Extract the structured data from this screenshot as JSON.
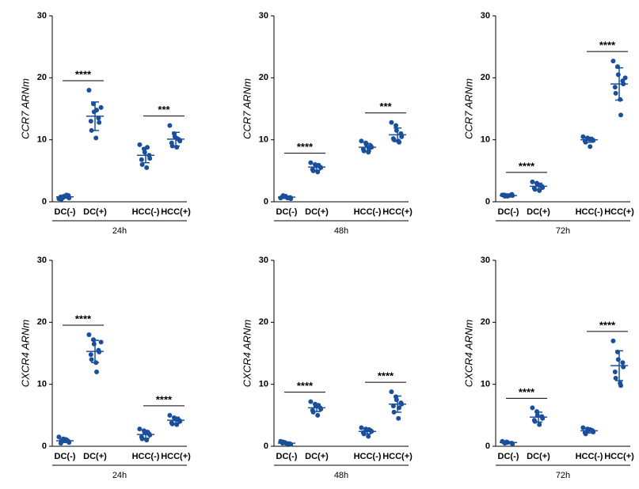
{
  "chart_data": [
    {
      "type": "scatter",
      "ylabel": "CCR7 ARNm",
      "xlabel": "24h",
      "categories": [
        "DC(-)",
        "DC(+)",
        "HCC(-)",
        "HCC(+)"
      ],
      "color": "#1a4f9c",
      "values": [
        [
          0.5,
          0.7,
          0.9,
          1.0,
          0.6,
          0.8,
          0.4,
          0.9,
          1.1
        ],
        [
          18,
          15.8,
          14.5,
          13.5,
          12.8,
          13,
          11.5,
          10.3,
          14.8,
          15.2
        ],
        [
          9.2,
          8.5,
          8.0,
          7.5,
          7.0,
          6.8,
          6.0,
          5.5,
          8.8
        ],
        [
          12.3,
          11,
          10.5,
          10,
          9.8,
          9.5,
          9,
          8.8,
          10.2
        ]
      ],
      "means": [
        0.8,
        13.8,
        7.5,
        10.1
      ],
      "sds": [
        0.2,
        2.3,
        1.2,
        1.1
      ],
      "annotations": [
        "****",
        "***"
      ],
      "ylim": [
        0,
        30
      ],
      "yticks": [
        0,
        10,
        20,
        30
      ]
    },
    {
      "type": "scatter",
      "ylabel": "CCR7 ARNm",
      "xlabel": "48h",
      "categories": [
        "DC(-)",
        "DC(+)",
        "HCC(-)",
        "HCC(+)"
      ],
      "color": "#1a4f9c",
      "values": [
        [
          0.6,
          0.8,
          0.9,
          0.7,
          0.5,
          0.8,
          1.0,
          0.6
        ],
        [
          6.3,
          6,
          5.8,
          5.6,
          5.5,
          5.2,
          5,
          4.8,
          5.9
        ],
        [
          9.8,
          9.5,
          9.2,
          9,
          8.8,
          8.5,
          8.2,
          8,
          8.6
        ],
        [
          12.8,
          12.3,
          11.5,
          11,
          10.5,
          10.2,
          10,
          9.8,
          9.6
        ]
      ],
      "means": [
        0.75,
        5.6,
        8.8,
        10.8
      ],
      "sds": [
        0.15,
        0.5,
        0.6,
        1.1
      ],
      "annotations": [
        "****",
        "***"
      ],
      "ylim": [
        0,
        30
      ],
      "yticks": [
        0,
        10,
        20,
        30
      ]
    },
    {
      "type": "scatter",
      "ylabel": "CCR7 ARNm",
      "xlabel": "72h",
      "categories": [
        "DC(-)",
        "DC(+)",
        "HCC(-)",
        "HCC(+)"
      ],
      "color": "#1a4f9c",
      "values": [
        [
          1.1,
          1.0,
          0.9,
          1.2,
          1.0,
          1.1,
          0.9,
          1.0
        ],
        [
          3.2,
          3.0,
          2.8,
          2.5,
          2.3,
          2.2,
          2.0,
          1.8,
          2.6
        ],
        [
          10.5,
          10.3,
          10.2,
          10,
          9.9,
          9.8,
          9.6,
          8.9,
          10.1
        ],
        [
          22.7,
          21.8,
          20.5,
          19.5,
          19,
          18.5,
          17.5,
          16.5,
          14,
          20
        ]
      ],
      "means": [
        1.0,
        2.5,
        10,
        19
      ],
      "sds": [
        0.1,
        0.5,
        0.4,
        2.6
      ],
      "annotations": [
        "****",
        "****"
      ],
      "ylim": [
        0,
        30
      ],
      "yticks": [
        0,
        10,
        20,
        30
      ]
    },
    {
      "type": "scatter",
      "ylabel": "CXCR4 ARNm",
      "xlabel": "24h",
      "categories": [
        "DC(-)",
        "DC(+)",
        "HCC(-)",
        "HCC(+)"
      ],
      "color": "#1a4f9c",
      "values": [
        [
          1.5,
          1.2,
          1.0,
          0.8,
          0.6,
          0.5,
          0.9,
          1.1
        ],
        [
          18,
          17.2,
          16.5,
          15.5,
          15.2,
          14.8,
          14,
          13.5,
          12,
          16.8
        ],
        [
          2.8,
          2.5,
          2.2,
          2,
          1.8,
          1.5,
          1.2,
          1.0,
          2.3
        ],
        [
          5,
          4.6,
          4.4,
          4.2,
          4,
          3.8,
          3.6,
          3.5,
          4.3
        ]
      ],
      "means": [
        0.9,
        15.3,
        1.9,
        4.2
      ],
      "sds": [
        0.3,
        1.8,
        0.6,
        0.5
      ],
      "annotations": [
        "****",
        "****"
      ],
      "ylim": [
        0,
        30
      ],
      "yticks": [
        0,
        10,
        20,
        30
      ]
    },
    {
      "type": "scatter",
      "ylabel": "CXCR4 ARNm",
      "xlabel": "48h",
      "categories": [
        "DC(-)",
        "DC(+)",
        "HCC(-)",
        "HCC(+)"
      ],
      "color": "#1a4f9c",
      "values": [
        [
          0.8,
          0.6,
          0.5,
          0.4,
          0.3,
          0.5,
          0.7,
          0.4
        ],
        [
          7.2,
          6.8,
          6.5,
          6.2,
          6,
          5.8,
          5.5,
          5,
          6.6
        ],
        [
          3,
          2.8,
          2.6,
          2.5,
          2.4,
          2.2,
          2,
          1.6,
          2.7
        ],
        [
          8.8,
          8,
          7.5,
          7,
          6.8,
          6.5,
          5.5,
          4.5,
          6.2
        ]
      ],
      "means": [
        0.5,
        6.2,
        2.4,
        6.8
      ],
      "sds": [
        0.2,
        0.6,
        0.4,
        1.3
      ],
      "annotations": [
        "****",
        "****"
      ],
      "ylim": [
        0,
        30
      ],
      "yticks": [
        0,
        10,
        20,
        30
      ]
    },
    {
      "type": "scatter",
      "ylabel": "CXCR4 ARNm",
      "xlabel": "72h",
      "categories": [
        "DC(-)",
        "DC(+)",
        "HCC(-)",
        "HCC(+)"
      ],
      "color": "#1a4f9c",
      "values": [
        [
          0.8,
          0.7,
          0.6,
          0.5,
          0.4,
          0.6,
          0.5
        ],
        [
          6.2,
          5.6,
          5,
          4.8,
          4.5,
          4.2,
          4,
          3.5
        ],
        [
          3,
          2.8,
          2.6,
          2.5,
          2.3,
          2.2,
          2,
          2.7
        ],
        [
          17,
          15.2,
          14,
          13.5,
          12.8,
          12,
          11,
          10.2,
          9.8
        ]
      ],
      "means": [
        0.6,
        4.7,
        2.5,
        13
      ],
      "sds": [
        0.15,
        0.8,
        0.35,
        2.4
      ],
      "annotations": [
        "****",
        "****"
      ],
      "ylim": [
        0,
        30
      ],
      "yticks": [
        0,
        10,
        20,
        30
      ]
    }
  ]
}
